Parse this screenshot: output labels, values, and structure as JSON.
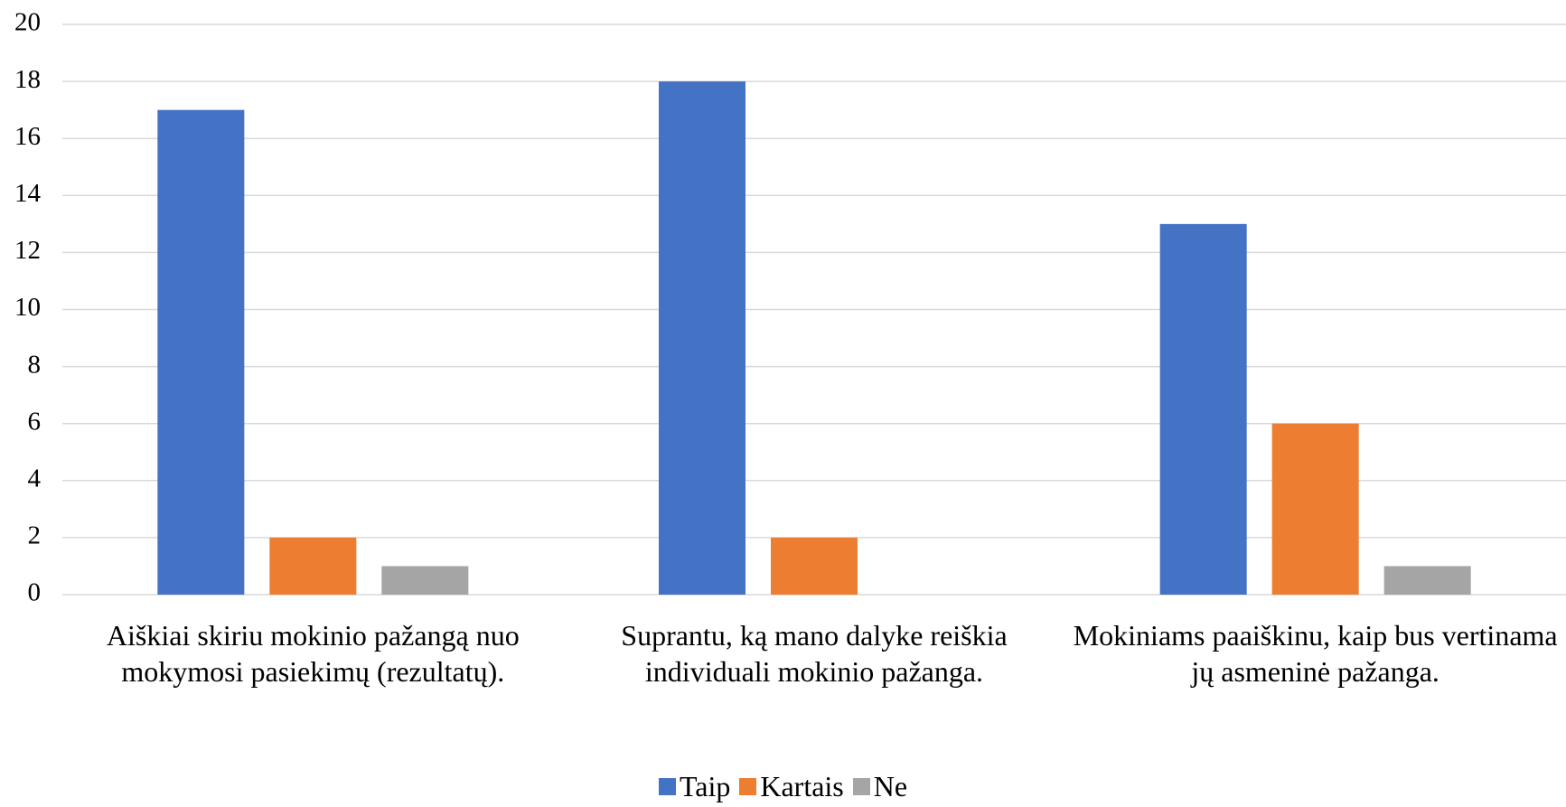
{
  "chart_data": {
    "type": "bar",
    "categories": [
      "Aiškiai skiriu mokinio pažangą nuo mokymosi pasiekimų (rezultatų).",
      "Suprantu, ką mano dalyke reiškia individuali mokinio pažanga.",
      "Mokiniams paaiškinu, kaip bus vertinama jų asmeninė pažanga."
    ],
    "series": [
      {
        "name": "Taip",
        "color": "#4472c4",
        "values": [
          17,
          18,
          13
        ]
      },
      {
        "name": "Kartais",
        "color": "#ed7d31",
        "values": [
          2,
          2,
          6
        ]
      },
      {
        "name": "Ne",
        "color": "#a5a5a5",
        "values": [
          1,
          0,
          1
        ]
      }
    ],
    "ylim": [
      0,
      20
    ],
    "yticks": [
      0,
      2,
      4,
      6,
      8,
      10,
      12,
      14,
      16,
      18,
      20
    ],
    "grid": true,
    "legend": "bottom"
  }
}
